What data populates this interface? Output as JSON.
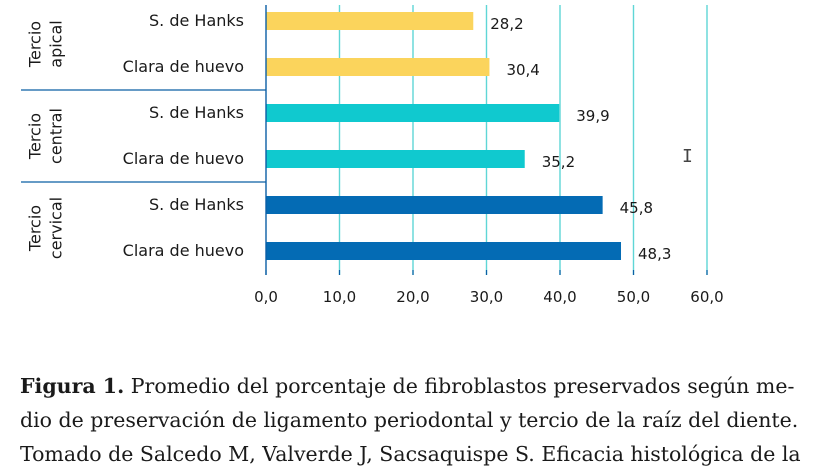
{
  "chart_data": {
    "type": "bar",
    "orientation": "horizontal",
    "groups": [
      {
        "label_lines": [
          "Tercio",
          "apical"
        ],
        "rows": [
          {
            "category": "S. de Hanks",
            "value": 28.2,
            "label": "28,2",
            "color": "#fbd45c"
          },
          {
            "category": "Clara de huevo",
            "value": 30.4,
            "label": "30,4",
            "color": "#fbd45c"
          }
        ]
      },
      {
        "label_lines": [
          "Tercio",
          "central"
        ],
        "rows": [
          {
            "category": "S. de Hanks",
            "value": 39.9,
            "label": "39,9",
            "color": "#10c9cf"
          },
          {
            "category": "Clara de huevo",
            "value": 35.2,
            "label": "35,2",
            "color": "#10c9cf"
          }
        ]
      },
      {
        "label_lines": [
          "Tercio",
          "cervical"
        ],
        "rows": [
          {
            "category": "S. de Hanks",
            "value": 45.8,
            "label": "45,8",
            "color": "#046bb4"
          },
          {
            "category": "Clara de huevo",
            "value": 48.3,
            "label": "48,3",
            "color": "#046bb4"
          }
        ]
      }
    ],
    "xlim": [
      0,
      60
    ],
    "xticks": [
      0,
      10,
      20,
      30,
      40,
      50,
      60
    ],
    "xtick_labels": [
      "0,0",
      "10,0",
      "20,0",
      "30,0",
      "40,0",
      "50,0",
      "60,0"
    ],
    "grid": "vertical",
    "gridline_color": "#5fd6d6",
    "axis_color": "#0b5fa5"
  },
  "caption": {
    "lead": "Figura 1.",
    "line1": "Promedio del porcentaje de fibroblastos preservados según me-",
    "line2": "dio de preservación de ligamento periodontal y tercio de la raíz del diente.",
    "line3": "Tomado de Salcedo M, Valverde J, Sacsaquispe S. Eficacia histológica de la"
  }
}
